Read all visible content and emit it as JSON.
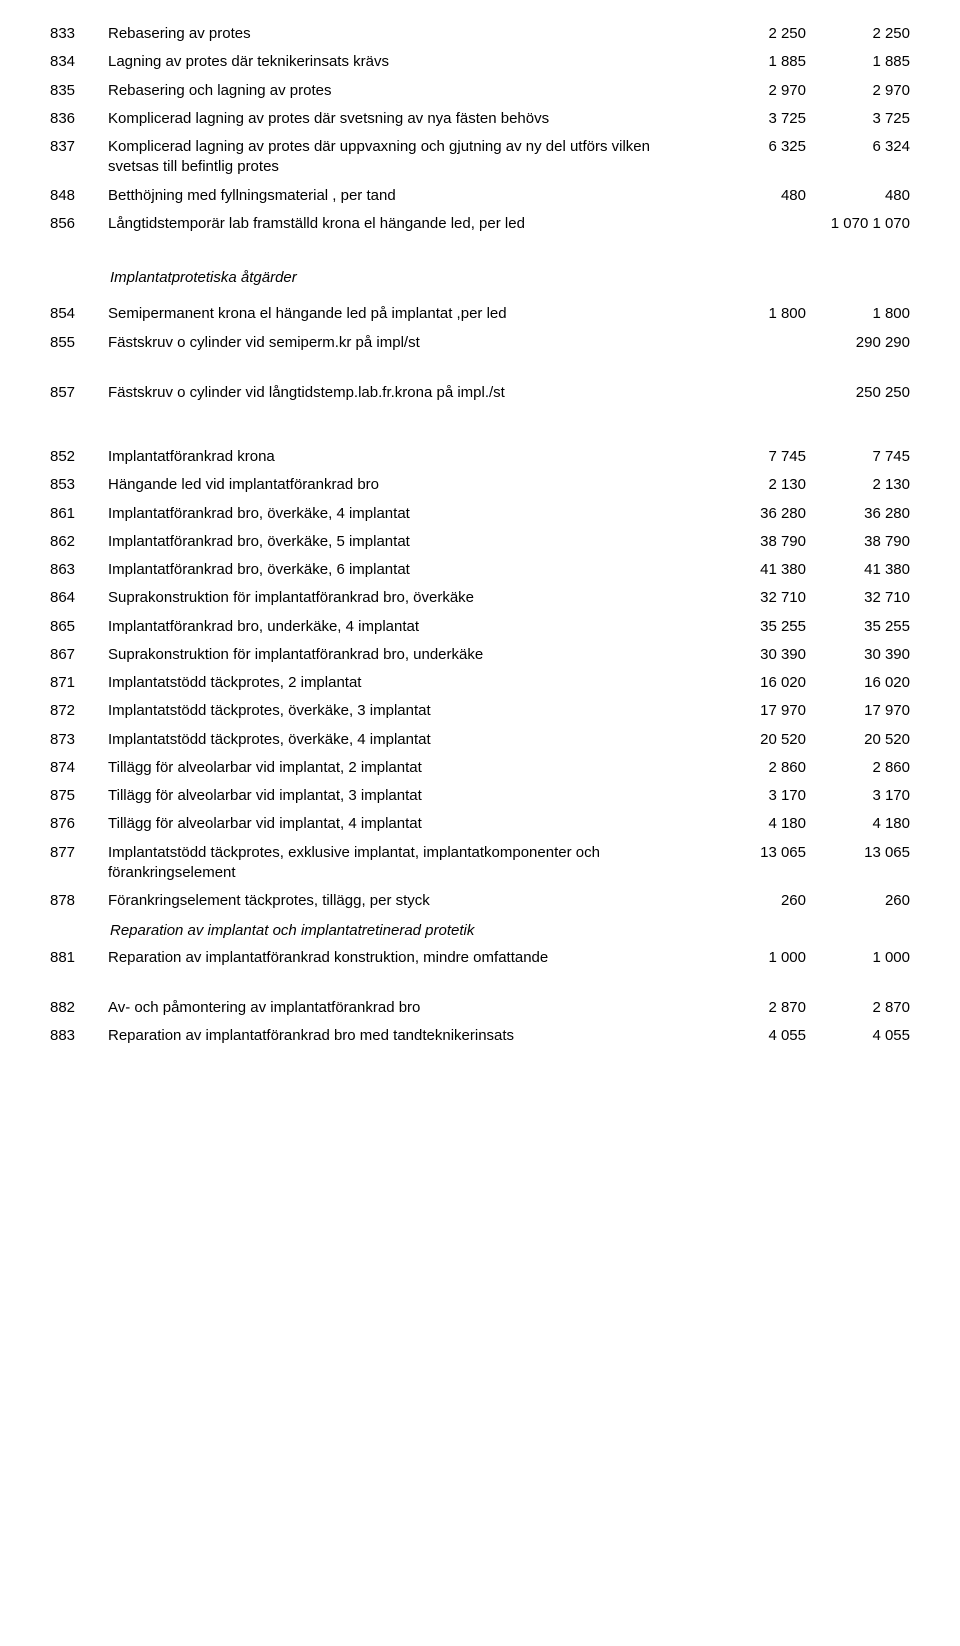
{
  "block1": [
    {
      "code": "833",
      "desc": "Rebasering av protes",
      "v1": "2 250",
      "v2": "2 250"
    },
    {
      "code": "834",
      "desc": "Lagning av protes där teknikerinsats krävs",
      "v1": "1 885",
      "v2": "1 885"
    },
    {
      "code": "835",
      "desc": "Rebasering och lagning av protes",
      "v1": "2 970",
      "v2": "2 970"
    },
    {
      "code": "836",
      "desc": "Komplicerad lagning av protes där svetsning av nya fästen behövs",
      "v1": "3 725",
      "v2": "3 725"
    },
    {
      "code": "837",
      "desc": "Komplicerad lagning av protes där uppvaxning och gjutning av ny del utförs vilken svetsas till befintlig protes",
      "v1": "6 325",
      "v2": "6 324"
    },
    {
      "code": "848",
      "desc": "Betthöjning med fyllningsmaterial , per tand",
      "v1": "480",
      "v2": "480"
    },
    {
      "code": "856",
      "desc": "Långtidstemporär lab framställd krona el hängande led, per led",
      "v1": "",
      "v2": "1 070 1 070"
    }
  ],
  "section1_title": "Implantatprotetiska åtgärder",
  "block2": [
    {
      "code": "854",
      "desc": "Semipermanent krona el hängande led på implantat ,per led",
      "v1": "1 800",
      "v2": "1 800"
    },
    {
      "code": "855",
      "desc": "Fästskruv o cylinder vid semiperm.kr på impl/st",
      "v1": "",
      "v2": "290 290"
    }
  ],
  "block2b": [
    {
      "code": "857",
      "desc": "Fästskruv o cylinder vid långtidstemp.lab.fr.krona på impl./st",
      "v1": "",
      "v2": "250 250"
    }
  ],
  "block3": [
    {
      "code": "852",
      "desc": "Implantatförankrad krona",
      "v1": "7 745",
      "v2": "7 745"
    },
    {
      "code": "853",
      "desc": "Hängande led vid implantatförankrad bro",
      "v1": "2 130",
      "v2": "2 130"
    },
    {
      "code": "861",
      "desc": "Implantatförankrad bro, överkäke, 4 implantat",
      "v1": "36 280",
      "v2": "36 280"
    },
    {
      "code": "862",
      "desc": "Implantatförankrad bro, överkäke, 5 implantat",
      "v1": "38 790",
      "v2": "38 790"
    },
    {
      "code": "863",
      "desc": "Implantatförankrad bro, överkäke, 6 implantat",
      "v1": "41 380",
      "v2": "41 380"
    },
    {
      "code": "864",
      "desc": "Suprakonstruktion för implantatförankrad bro, överkäke",
      "v1": "32 710",
      "v2": "32 710"
    },
    {
      "code": "865",
      "desc": "Implantatförankrad bro, underkäke, 4 implantat",
      "v1": "35 255",
      "v2": "35 255"
    },
    {
      "code": "867",
      "desc": "Suprakonstruktion för implantatförankrad bro, underkäke",
      "v1": "30 390",
      "v2": "30 390"
    },
    {
      "code": "871",
      "desc": "Implantatstödd täckprotes, 2 implantat",
      "v1": "16 020",
      "v2": "16 020"
    },
    {
      "code": "872",
      "desc": "Implantatstödd täckprotes, överkäke, 3 implantat",
      "v1": "17 970",
      "v2": "17 970"
    },
    {
      "code": "873",
      "desc": "Implantatstödd täckprotes, överkäke, 4 implantat",
      "v1": "20 520",
      "v2": "20 520"
    },
    {
      "code": "874",
      "desc": "Tillägg för alveolarbar vid implantat, 2 implantat",
      "v1": "2 860",
      "v2": "2 860"
    },
    {
      "code": "875",
      "desc": "Tillägg för alveolarbar vid implantat, 3 implantat",
      "v1": "3 170",
      "v2": "3 170"
    },
    {
      "code": "876",
      "desc": "Tillägg för alveolarbar vid implantat, 4 implantat",
      "v1": "4 180",
      "v2": "4 180"
    },
    {
      "code": "877",
      "desc": "Implantatstödd täckprotes, exklusive implantat, implantatkomponenter och förankringselement",
      "v1": "13 065",
      "v2": "13 065"
    },
    {
      "code": "878",
      "desc": "Förankringselement täckprotes, tillägg, per styck",
      "v1": "260",
      "v2": "260"
    }
  ],
  "sub_italic": "Reparation av implantat och implantatretinerad protetik",
  "block4": [
    {
      "code": "881",
      "desc": "Reparation av implantatförankrad konstruktion, mindre omfattande",
      "v1": "1 000",
      "v2": "1 000"
    }
  ],
  "block5": [
    {
      "code": "882",
      "desc": "Av- och påmontering av implantatförankrad bro",
      "v1": "2 870",
      "v2": "2 870"
    },
    {
      "code": "883",
      "desc": "Reparation av implantatförankrad bro med tandteknikerinsats",
      "v1": "4 055",
      "v2": "4 055"
    }
  ]
}
